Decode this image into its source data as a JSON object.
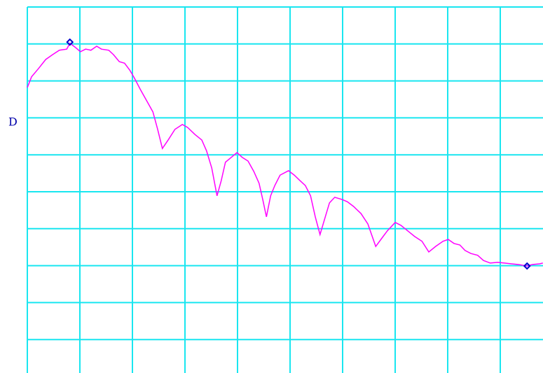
{
  "chart_data": {
    "type": "line",
    "label": "D",
    "xlim": [
      0,
      10
    ],
    "ylim": [
      0,
      10
    ],
    "xticks": [
      0,
      1,
      2,
      3,
      4,
      5,
      6,
      7,
      8,
      9,
      10
    ],
    "yticks": [
      0,
      1,
      2,
      3,
      4,
      5,
      6,
      7,
      8,
      9,
      10
    ],
    "grid": true,
    "grid_color": "#19e6f0",
    "x": [
      0,
      0.08,
      0.21,
      0.35,
      0.48,
      0.61,
      0.75,
      0.81,
      0.92,
      1.01,
      1.11,
      1.21,
      1.32,
      1.41,
      1.55,
      1.64,
      1.75,
      1.85,
      1.95,
      2.04,
      2.15,
      2.28,
      2.39,
      2.48,
      2.57,
      2.68,
      2.81,
      2.95,
      3.05,
      3.19,
      3.32,
      3.41,
      3.51,
      3.61,
      3.69,
      3.77,
      3.88,
      3.99,
      4.09,
      4.2,
      4.31,
      4.41,
      4.48,
      4.55,
      4.63,
      4.71,
      4.81,
      4.97,
      5.08,
      5.19,
      5.29,
      5.39,
      5.48,
      5.57,
      5.67,
      5.75,
      5.85,
      5.99,
      6.09,
      6.21,
      6.35,
      6.48,
      6.63,
      6.75,
      6.85,
      7,
      7.11,
      7.24,
      7.37,
      7.51,
      7.64,
      7.77,
      7.91,
      8.01,
      8.12,
      8.23,
      8.33,
      8.44,
      8.57,
      8.68,
      8.81,
      8.95,
      9.08,
      9.21,
      9.35,
      9.51,
      9.61,
      9.75,
      9.81
    ],
    "series": [
      {
        "color": "#ff00ff",
        "values": [
          7.82,
          8.11,
          8.33,
          8.58,
          8.71,
          8.83,
          8.86,
          9.02,
          8.9,
          8.79,
          8.86,
          8.83,
          8.94,
          8.86,
          8.83,
          8.71,
          8.52,
          8.48,
          8.29,
          8.07,
          7.77,
          7.44,
          7.16,
          6.69,
          6.17,
          6.4,
          6.69,
          6.82,
          6.74,
          6.55,
          6.4,
          6.11,
          5.64,
          4.89,
          5.3,
          5.8,
          5.93,
          6.06,
          5.93,
          5.83,
          5.55,
          5.23,
          4.79,
          4.32,
          4.89,
          5.17,
          5.45,
          5.57,
          5.45,
          5.3,
          5.17,
          4.89,
          4.32,
          3.84,
          4.32,
          4.7,
          4.85,
          4.79,
          4.73,
          4.6,
          4.41,
          4.13,
          3.52,
          3.75,
          3.94,
          4.17,
          4.09,
          3.94,
          3.79,
          3.66,
          3.37,
          3.52,
          3.66,
          3.71,
          3.6,
          3.56,
          3.41,
          3.33,
          3.28,
          3.14,
          3.07,
          3.09,
          3.07,
          3.05,
          3.03,
          2.99,
          3.03,
          3.05,
          3.07
        ]
      }
    ],
    "markers": {
      "color": "#0000cc",
      "x": [
        0.81,
        9.51
      ],
      "values": [
        9.05,
        2.99
      ]
    }
  }
}
